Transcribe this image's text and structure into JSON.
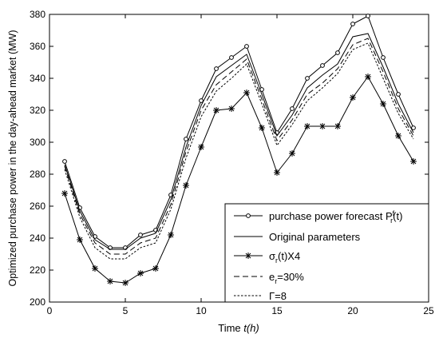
{
  "chart_data": {
    "type": "line",
    "xlabel_prefix": "Time ",
    "xlabel_var": "t(h)",
    "ylabel": "Optimized purchase power in the day-ahead market (MW)",
    "xlim": [
      0,
      25
    ],
    "ylim": [
      200,
      380
    ],
    "xticks": [
      0,
      5,
      10,
      15,
      20,
      25
    ],
    "yticks": [
      200,
      220,
      240,
      260,
      280,
      300,
      320,
      340,
      360,
      380
    ],
    "grid": false,
    "legend_position": "bottom-right",
    "x": [
      1,
      2,
      3,
      4,
      5,
      6,
      7,
      8,
      9,
      10,
      11,
      12,
      13,
      14,
      15,
      16,
      17,
      18,
      19,
      20,
      21,
      22,
      23,
      24
    ],
    "series": [
      {
        "name": "purchase power forecast P_r^f(t)",
        "legend_text": "purchase power forecast P",
        "legend_sub": "r",
        "legend_sup": "f",
        "legend_tail": "(t)",
        "style": "solid-circle",
        "values": [
          288,
          259,
          241,
          234,
          234,
          242,
          245,
          267,
          302,
          326,
          346,
          353,
          360,
          333,
          306,
          321,
          340,
          348,
          356,
          374,
          379,
          353,
          330,
          309
        ]
      },
      {
        "name": "Original parameters",
        "legend_text": "Original parameters",
        "style": "solid",
        "values": [
          286,
          257,
          239,
          233,
          233,
          240,
          243,
          264,
          297,
          323,
          341,
          348,
          355,
          330,
          304,
          317,
          334,
          342,
          349,
          366,
          368,
          347,
          324,
          306
        ]
      },
      {
        "name": "σ_r(t)X4",
        "legend_text": "σ",
        "legend_sub": "r",
        "legend_tail": "(t)X4",
        "style": "solid-star",
        "values": [
          268,
          239,
          221,
          213,
          212,
          218,
          221,
          242,
          273,
          297,
          320,
          321,
          331,
          309,
          281,
          293,
          310,
          310,
          310,
          328,
          341,
          324,
          304,
          288
        ]
      },
      {
        "name": "e_r=30%",
        "legend_text": "e",
        "legend_sub": "r",
        "legend_tail": "=30%",
        "style": "dashed",
        "values": [
          285,
          255,
          237,
          230,
          230,
          237,
          240,
          261,
          294,
          320,
          336,
          344,
          352,
          327,
          301,
          314,
          330,
          337,
          346,
          361,
          365,
          344,
          321,
          304
        ]
      },
      {
        "name": "Γ=8",
        "legend_text": "Γ=8",
        "style": "dotted",
        "values": [
          283,
          253,
          234,
          227,
          227,
          234,
          237,
          258,
          290,
          316,
          332,
          340,
          349,
          324,
          298,
          311,
          326,
          334,
          343,
          358,
          362,
          340,
          318,
          302
        ]
      }
    ]
  }
}
